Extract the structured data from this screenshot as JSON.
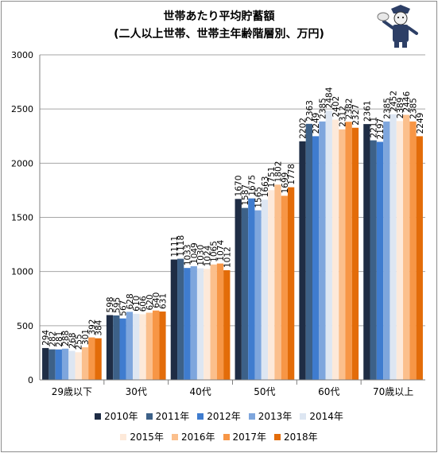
{
  "chart_data": {
    "type": "bar",
    "title": "世帯あたり平均貯蓄額",
    "subtitle": "(二人以上世帯、世帯主年齢階層別、万円)",
    "categories": [
      "29歳以下",
      "30代",
      "40代",
      "50代",
      "60代",
      "70歳以上"
    ],
    "ylim": [
      0,
      3000
    ],
    "yticks": [
      0,
      500,
      1000,
      1500,
      2000,
      2500,
      3000
    ],
    "gridlines": true,
    "legend_position": "bottom",
    "series": [
      {
        "name": "2010年",
        "color": "#1f2d45",
        "values": [
          294,
          598,
          1111,
          1670,
          2202,
          2361
        ]
      },
      {
        "name": "2011年",
        "color": "#3d6188",
        "values": [
          282,
          595,
          1118,
          1587,
          2363,
          2211
        ]
      },
      {
        "name": "2012年",
        "color": "#3f7ccf",
        "values": [
          281,
          567,
          1033,
          1675,
          2249,
          2197
        ]
      },
      {
        "name": "2013年",
        "color": "#7ea6dd",
        "values": [
          288,
          628,
          1049,
          1565,
          2385,
          2385
        ]
      },
      {
        "name": "2014年",
        "color": "#dde6f2",
        "values": [
          268,
          610,
          1030,
          1663,
          2484,
          2452
        ]
      },
      {
        "name": "2015年",
        "color": "#fde9d9",
        "values": [
          255,
          606,
          1024,
          1751,
          2402,
          2389
        ]
      },
      {
        "name": "2016年",
        "color": "#fbbf8c",
        "values": [
          301,
          620,
          1065,
          1802,
          2312,
          2446
        ]
      },
      {
        "name": "2017年",
        "color": "#f79646",
        "values": [
          392,
          640,
          1074,
          1699,
          2382,
          2385
        ]
      },
      {
        "name": "2018年",
        "color": "#e36c09",
        "values": [
          384,
          631,
          1012,
          1778,
          2327,
          2249
        ]
      }
    ]
  }
}
